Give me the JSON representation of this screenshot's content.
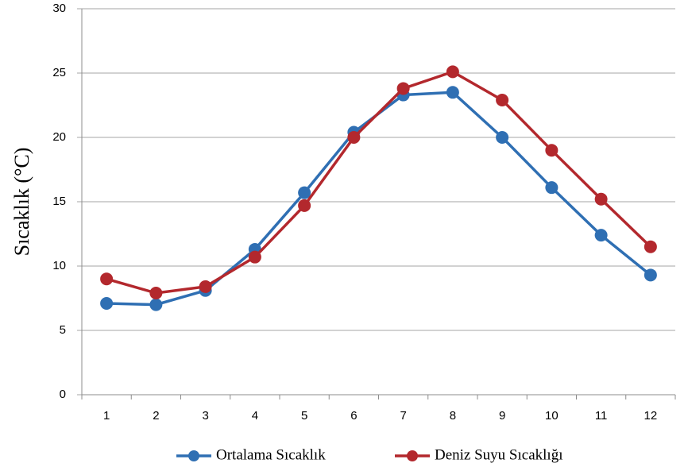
{
  "chart_data": {
    "type": "line",
    "y_label": "Sıcaklık (°C)",
    "categories": [
      "1",
      "2",
      "3",
      "4",
      "5",
      "6",
      "7",
      "8",
      "9",
      "10",
      "11",
      "12"
    ],
    "series": [
      {
        "name": "Ortalama Sıcaklık",
        "color": "#2f6fb3",
        "values": [
          7.1,
          7.0,
          8.1,
          11.3,
          15.7,
          20.4,
          23.3,
          23.5,
          20.0,
          16.1,
          12.4,
          9.3
        ]
      },
      {
        "name": "Deniz Suyu Sıcaklığı",
        "color": "#b3282d",
        "values": [
          9.0,
          7.9,
          8.4,
          10.7,
          14.7,
          20.0,
          23.8,
          25.1,
          22.9,
          19.0,
          15.2,
          11.5
        ]
      }
    ],
    "ylim": [
      0,
      30
    ],
    "yticks": [
      0,
      5,
      10,
      15,
      20,
      25,
      30
    ],
    "grid": true,
    "legend": "bottom"
  }
}
